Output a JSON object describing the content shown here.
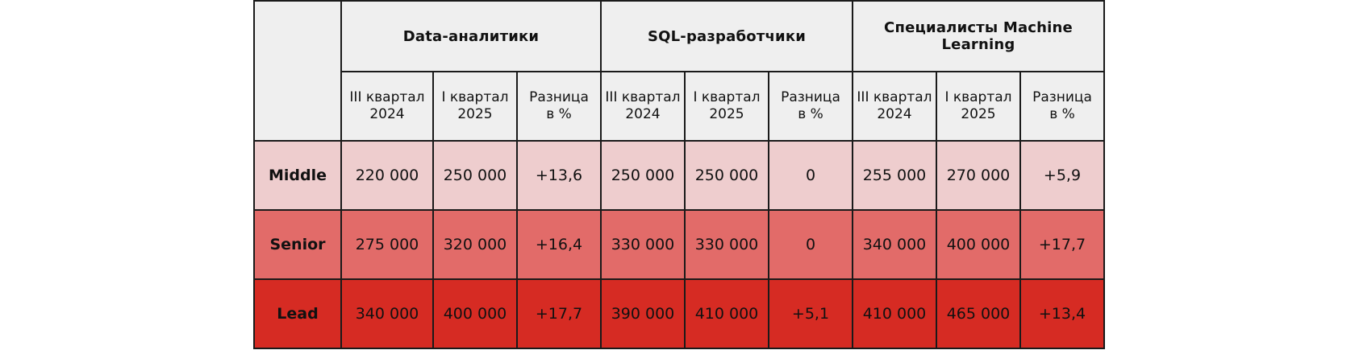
{
  "groups": [
    {
      "title": "Data-аналитики"
    },
    {
      "title": "SQL-разработчики"
    },
    {
      "title": "Специалисты Machine Learning"
    }
  ],
  "subheaders": [
    {
      "line1": "III квартал",
      "line2": "2024"
    },
    {
      "line1": "I квартал",
      "line2": "2025"
    },
    {
      "line1": "Разница",
      "line2": "в %"
    }
  ],
  "rows": [
    {
      "level": "Middle",
      "cells": [
        "220 000",
        "250 000",
        "+13,6",
        "250 000",
        "250 000",
        "0",
        "255 000",
        "270 000",
        "+5,9"
      ]
    },
    {
      "level": "Senior",
      "cells": [
        "275 000",
        "320 000",
        "+16,4",
        "330 000",
        "330 000",
        "0",
        "340 000",
        "400 000",
        "+17,7"
      ]
    },
    {
      "level": "Lead",
      "cells": [
        "340 000",
        "400 000",
        "+17,7",
        "390 000",
        "410 000",
        "+5,1",
        "410 000",
        "465 000",
        "+13,4"
      ]
    }
  ],
  "colors": {
    "header_bg": "#efefef",
    "middle_bg": "#eecdce",
    "senior_bg": "#e26b69",
    "lead_bg": "#d62b23"
  }
}
